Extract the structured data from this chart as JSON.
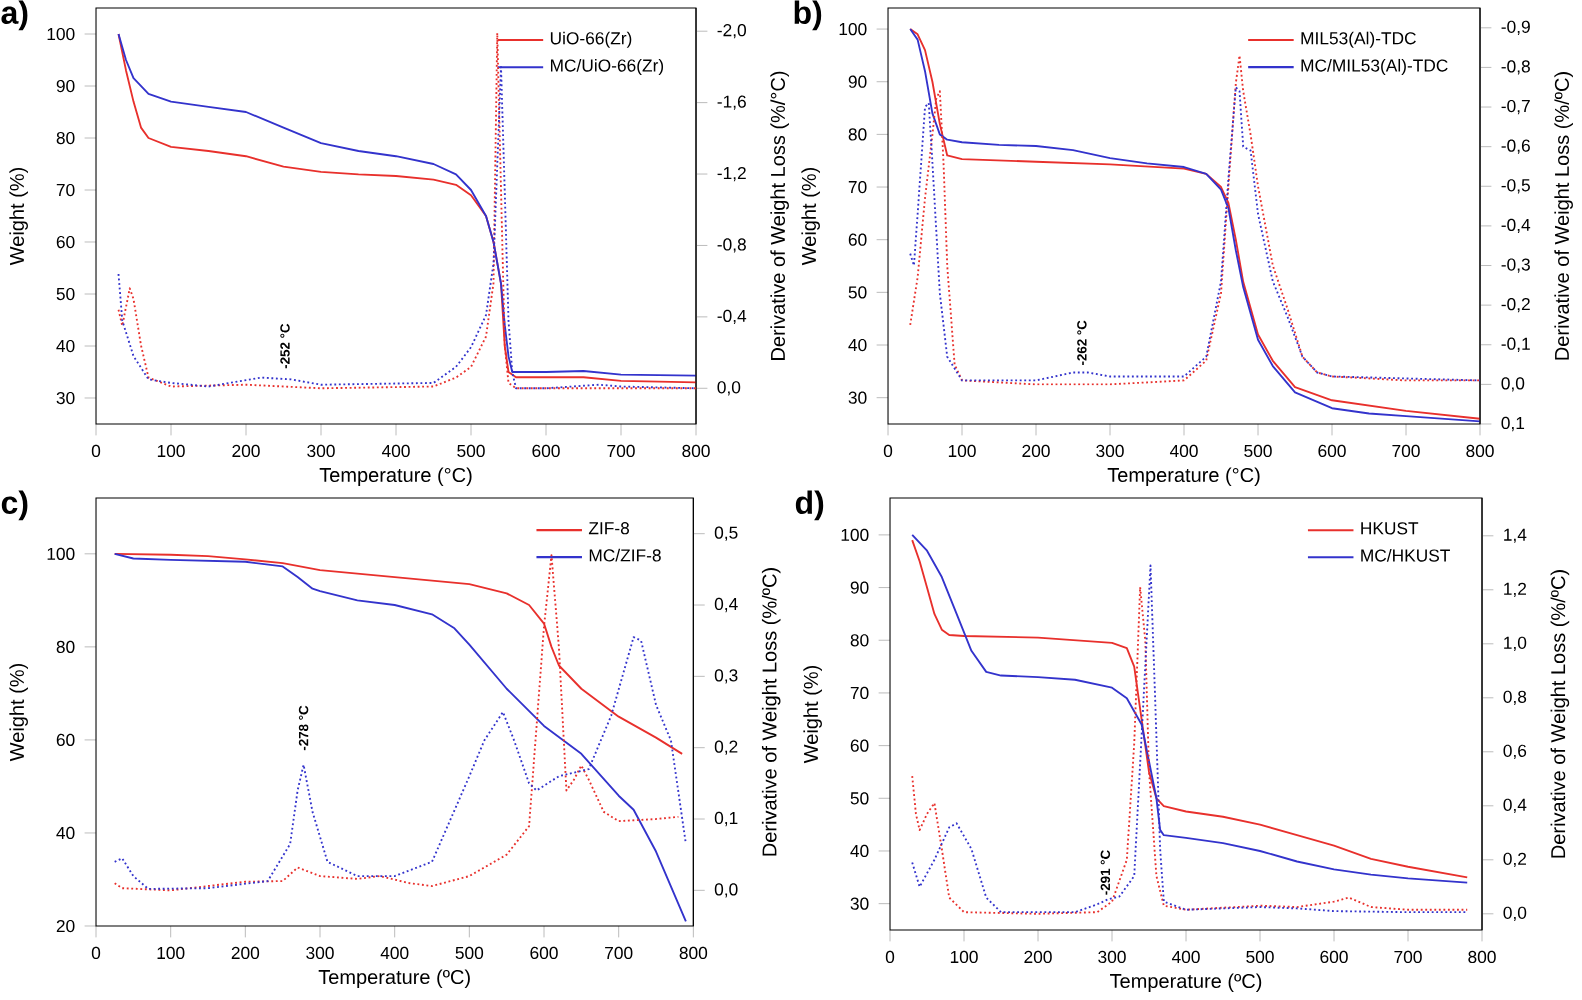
{
  "chart_data": [
    {
      "type": "line",
      "title": "a)",
      "xlabel": "Temperature (°C)",
      "ylabel": "Weight (%)",
      "y2label": "Derivative of Weight Loss (%/°C)",
      "xlim": [
        0,
        800
      ],
      "xticks": [
        0,
        100,
        200,
        300,
        400,
        500,
        600,
        700,
        800
      ],
      "ylim": [
        25,
        105
      ],
      "yticks": [
        30,
        40,
        50,
        60,
        70,
        80,
        90,
        100
      ],
      "y2lim": [
        0.2,
        -2.13
      ],
      "y2ticks": [
        {
          "value": -2.0,
          "label": "-2,0"
        },
        {
          "value": -1.6,
          "label": "-1,6"
        },
        {
          "value": -1.2,
          "label": "-1,2"
        },
        {
          "value": -0.8,
          "label": "-0,8"
        },
        {
          "value": -0.4,
          "label": "-0,4"
        },
        {
          "value": 0.0,
          "label": "0,0"
        }
      ],
      "legend": "top right",
      "marker": "none",
      "annotations": [
        {
          "text": "-252 °C",
          "x": 252,
          "y": 35
        }
      ],
      "series": [
        {
          "name": "UiO-66(Zr)",
          "color": "#e8302c",
          "line_style": "solid",
          "x": [
            30,
            40,
            50,
            60,
            70,
            100,
            150,
            200,
            250,
            300,
            350,
            400,
            450,
            480,
            500,
            520,
            530,
            540,
            545,
            550,
            560,
            600,
            650,
            700,
            800
          ],
          "values": [
            100,
            93,
            87,
            82,
            80,
            78.3,
            77.5,
            76.5,
            74.5,
            73.5,
            73,
            72.7,
            72,
            71,
            69,
            65,
            60,
            52,
            40,
            35,
            34,
            34,
            34,
            33.3,
            33
          ]
        },
        {
          "name": "MC/UiO-66(Zr)",
          "color": "#3333cc",
          "line_style": "solid",
          "x": [
            30,
            40,
            50,
            70,
            100,
            150,
            200,
            250,
            300,
            350,
            400,
            450,
            480,
            500,
            520,
            530,
            540,
            545,
            550,
            555,
            600,
            650,
            700,
            800
          ],
          "values": [
            100,
            95,
            91.5,
            88.5,
            87,
            86,
            85,
            82,
            79,
            77.5,
            76.5,
            75,
            73,
            70,
            65,
            60,
            52,
            44,
            38,
            35,
            35,
            35.2,
            34.5,
            34.3
          ]
        },
        {
          "color": "#e8302c",
          "line_style": "dotted",
          "axis": "y2",
          "x": [
            30,
            35,
            45,
            50,
            60,
            70,
            100,
            200,
            300,
            450,
            480,
            500,
            520,
            530,
            535,
            540,
            545,
            550,
            560,
            600,
            700,
            800
          ],
          "values": [
            -0.44,
            -0.35,
            -0.56,
            -0.5,
            -0.24,
            -0.06,
            -0.01,
            -0.02,
            0.0,
            -0.01,
            -0.06,
            -0.12,
            -0.29,
            -0.59,
            -1.99,
            -1.11,
            -0.24,
            -0.03,
            0.0,
            0.0,
            0.0,
            0.0
          ]
        },
        {
          "color": "#3333cc",
          "line_style": "dotted",
          "axis": "y2",
          "x": [
            30,
            35,
            50,
            70,
            100,
            150,
            220,
            260,
            300,
            450,
            480,
            500,
            520,
            530,
            540,
            545,
            550,
            555,
            560,
            600,
            670,
            700,
            800
          ],
          "values": [
            -0.64,
            -0.38,
            -0.18,
            -0.05,
            -0.03,
            -0.01,
            -0.06,
            -0.05,
            -0.02,
            -0.03,
            -0.12,
            -0.23,
            -0.41,
            -0.7,
            -1.8,
            -1.1,
            -0.38,
            -0.09,
            0.0,
            0.0,
            -0.02,
            -0.01,
            0.0
          ]
        }
      ]
    },
    {
      "type": "line",
      "title": "b)",
      "xlabel": "Temperature (°C)",
      "ylabel": "Weight (%)",
      "y2label": "Derivative of Weight Loss (%/ºC)",
      "xlim": [
        0,
        800
      ],
      "xticks": [
        0,
        100,
        200,
        300,
        400,
        500,
        600,
        700,
        800
      ],
      "ylim": [
        25,
        104
      ],
      "yticks": [
        30,
        40,
        50,
        60,
        70,
        80,
        90,
        100
      ],
      "y2lim": [
        0.1,
        -0.95
      ],
      "y2ticks": [
        {
          "value": -0.9,
          "label": "-0,9"
        },
        {
          "value": -0.8,
          "label": "-0,8"
        },
        {
          "value": -0.7,
          "label": "-0,7"
        },
        {
          "value": -0.6,
          "label": "-0,6"
        },
        {
          "value": -0.5,
          "label": "-0,5"
        },
        {
          "value": -0.4,
          "label": "-0,4"
        },
        {
          "value": -0.3,
          "label": "-0,3"
        },
        {
          "value": -0.2,
          "label": "-0,2"
        },
        {
          "value": -0.1,
          "label": "-0,1"
        },
        {
          "value": 0.0,
          "label": "0,0"
        },
        {
          "value": 0.1,
          "label": "0,1"
        }
      ],
      "legend": "top right",
      "marker": "none",
      "annotations": [
        {
          "text": "-262 °C",
          "x": 262,
          "y": 35.5
        }
      ],
      "series": [
        {
          "name": "MIL53(Al)-TDC",
          "color": "#e8302c",
          "line_style": "solid",
          "x": [
            30,
            40,
            50,
            60,
            70,
            80,
            100,
            200,
            300,
            400,
            430,
            450,
            460,
            470,
            480,
            500,
            520,
            550,
            600,
            650,
            700,
            800
          ],
          "values": [
            100,
            99,
            96,
            90,
            82,
            76,
            75.3,
            74.8,
            74.3,
            73.5,
            72.5,
            70,
            67,
            60,
            52,
            42,
            37,
            32,
            29.5,
            28.5,
            27.5,
            26
          ]
        },
        {
          "name": "MC/MIL53(Al)-TDC",
          "color": "#3333cc",
          "line_style": "solid",
          "x": [
            30,
            40,
            50,
            60,
            70,
            80,
            100,
            150,
            200,
            250,
            300,
            350,
            400,
            430,
            450,
            460,
            470,
            480,
            500,
            520,
            550,
            600,
            650,
            700,
            800
          ],
          "values": [
            100,
            98,
            92,
            84,
            80,
            79,
            78.5,
            78,
            77.8,
            77,
            75.5,
            74.5,
            73.8,
            72.5,
            69.5,
            66,
            58,
            51,
            41,
            36,
            31,
            28,
            27,
            26.5,
            25.5
          ]
        },
        {
          "color": "#e8302c",
          "line_style": "dotted",
          "axis": "y2",
          "x": [
            30,
            40,
            50,
            60,
            65,
            70,
            75,
            80,
            90,
            100,
            200,
            300,
            400,
            430,
            450,
            460,
            470,
            475,
            480,
            490,
            500,
            520,
            540,
            560,
            580,
            600,
            700,
            800
          ],
          "values": [
            -0.15,
            -0.27,
            -0.47,
            -0.63,
            -0.72,
            -0.74,
            -0.56,
            -0.3,
            -0.05,
            -0.01,
            0.0,
            0.0,
            -0.01,
            -0.06,
            -0.23,
            -0.5,
            -0.76,
            -0.83,
            -0.74,
            -0.63,
            -0.5,
            -0.3,
            -0.19,
            -0.07,
            -0.03,
            -0.02,
            -0.01,
            -0.01
          ]
        },
        {
          "color": "#3333cc",
          "line_style": "dotted",
          "axis": "y2",
          "x": [
            30,
            35,
            40,
            50,
            55,
            60,
            70,
            80,
            100,
            200,
            250,
            270,
            300,
            400,
            430,
            450,
            460,
            470,
            475,
            480,
            490,
            500,
            520,
            540,
            560,
            580,
            600,
            800
          ],
          "values": [
            -0.33,
            -0.3,
            -0.43,
            -0.7,
            -0.71,
            -0.56,
            -0.23,
            -0.07,
            -0.01,
            -0.01,
            -0.03,
            -0.03,
            -0.02,
            -0.02,
            -0.07,
            -0.26,
            -0.52,
            -0.75,
            -0.74,
            -0.6,
            -0.59,
            -0.43,
            -0.26,
            -0.17,
            -0.07,
            -0.03,
            -0.02,
            -0.01
          ]
        }
      ]
    },
    {
      "type": "line",
      "title": "c)",
      "xlabel": "Temperature (ºC)",
      "ylabel": "Weight (%)",
      "y2label": "Derivative of Weight Loss (%/ºC)",
      "xlim": [
        0,
        800
      ],
      "xticks": [
        0,
        100,
        200,
        300,
        400,
        500,
        600,
        700,
        800
      ],
      "ylim": [
        20,
        112
      ],
      "yticks": [
        20,
        40,
        60,
        80,
        100
      ],
      "y2lim": [
        -0.05,
        0.55
      ],
      "y2ticks": [
        {
          "value": 0.0,
          "label": "0,0"
        },
        {
          "value": 0.1,
          "label": "0,1"
        },
        {
          "value": 0.2,
          "label": "0,2"
        },
        {
          "value": 0.3,
          "label": "0,3"
        },
        {
          "value": 0.4,
          "label": "0,4"
        },
        {
          "value": 0.5,
          "label": "0,5"
        }
      ],
      "legend": "top right",
      "marker": "none",
      "annotations": [
        {
          "text": "-278 °C",
          "x": 278,
          "y": 57
        }
      ],
      "series": [
        {
          "name": "ZIF-8",
          "color": "#e8302c",
          "line_style": "solid",
          "x": [
            25,
            100,
            150,
            200,
            250,
            300,
            400,
            500,
            550,
            580,
            600,
            610,
            620,
            650,
            700,
            750,
            785
          ],
          "values": [
            100,
            99.8,
            99.5,
            98.8,
            98,
            96.5,
            95,
            93.5,
            91.5,
            89,
            85,
            80,
            76,
            71,
            65,
            60.5,
            57
          ]
        },
        {
          "name": "MC/ZIF-8",
          "color": "#3333cc",
          "line_style": "solid",
          "x": [
            25,
            50,
            100,
            200,
            250,
            270,
            290,
            300,
            350,
            400,
            450,
            480,
            500,
            550,
            600,
            650,
            700,
            720,
            750,
            790
          ],
          "values": [
            100,
            99,
            98.7,
            98.3,
            97.3,
            95,
            92.5,
            92,
            90,
            89,
            87,
            84,
            80.5,
            71,
            63,
            57,
            48,
            45,
            36,
            21
          ]
        },
        {
          "color": "#e8302c",
          "line_style": "dotted",
          "axis": "y2",
          "x": [
            25,
            35,
            100,
            200,
            250,
            270,
            300,
            350,
            380,
            420,
            450,
            500,
            550,
            580,
            600,
            610,
            620,
            630,
            640,
            650,
            660,
            680,
            700,
            750,
            780
          ],
          "values": [
            0.01,
            0.003,
            0.0,
            0.012,
            0.013,
            0.032,
            0.02,
            0.016,
            0.02,
            0.01,
            0.006,
            0.02,
            0.05,
            0.09,
            0.37,
            0.47,
            0.34,
            0.14,
            0.155,
            0.175,
            0.155,
            0.11,
            0.097,
            0.1,
            0.103
          ]
        },
        {
          "color": "#3333cc",
          "line_style": "dotted",
          "axis": "y2",
          "x": [
            25,
            35,
            50,
            70,
            150,
            230,
            260,
            270,
            278,
            290,
            310,
            350,
            400,
            450,
            500,
            520,
            545,
            560,
            580,
            590,
            620,
            660,
            690,
            720,
            730,
            750,
            770,
            790
          ],
          "values": [
            0.04,
            0.045,
            0.02,
            0.002,
            0.003,
            0.013,
            0.065,
            0.14,
            0.176,
            0.11,
            0.04,
            0.02,
            0.02,
            0.04,
            0.16,
            0.21,
            0.25,
            0.21,
            0.15,
            0.14,
            0.16,
            0.17,
            0.245,
            0.355,
            0.35,
            0.26,
            0.21,
            0.065
          ]
        }
      ]
    },
    {
      "type": "line",
      "title": "d)",
      "xlabel": "Temperature (ºC)",
      "ylabel": "Weight (%)",
      "y2label": "Derivative of Weight Loss (%/ºC)",
      "xlim": [
        0,
        800
      ],
      "xticks": [
        0,
        100,
        200,
        300,
        400,
        500,
        600,
        700,
        800
      ],
      "ylim": [
        25,
        107
      ],
      "yticks": [
        30,
        40,
        50,
        60,
        70,
        80,
        90,
        100
      ],
      "y2lim": [
        -0.06,
        1.54
      ],
      "y2ticks": [
        {
          "value": 0.0,
          "label": "0,0"
        },
        {
          "value": 0.2,
          "label": "0,2"
        },
        {
          "value": 0.4,
          "label": "0,4"
        },
        {
          "value": 0.6,
          "label": "0,6"
        },
        {
          "value": 0.8,
          "label": "0,8"
        },
        {
          "value": 1.0,
          "label": "1,0"
        },
        {
          "value": 1.2,
          "label": "1,2"
        },
        {
          "value": 1.4,
          "label": "1,4"
        }
      ],
      "legend": "top right",
      "marker": "none",
      "annotations": [
        {
          "text": "-291 °C",
          "x": 291,
          "y": 31
        }
      ],
      "series": [
        {
          "name": "HKUST",
          "color": "#e8302c",
          "line_style": "solid",
          "x": [
            30,
            40,
            50,
            60,
            70,
            80,
            100,
            200,
            300,
            320,
            330,
            340,
            350,
            360,
            370,
            400,
            450,
            500,
            550,
            600,
            650,
            700,
            780
          ],
          "values": [
            99,
            95,
            90,
            85,
            82,
            81,
            80.8,
            80.5,
            79.5,
            78.5,
            75,
            65,
            55,
            50,
            48.5,
            47.5,
            46.5,
            45,
            43,
            41,
            38.5,
            37,
            35
          ]
        },
        {
          "name": "MC/HKUST",
          "color": "#3333cc",
          "line_style": "solid",
          "x": [
            30,
            50,
            70,
            90,
            110,
            130,
            150,
            200,
            250,
            300,
            320,
            340,
            350,
            360,
            365,
            370,
            400,
            450,
            500,
            550,
            600,
            650,
            700,
            780
          ],
          "values": [
            100,
            97,
            92,
            85,
            78,
            74,
            73.3,
            73,
            72.5,
            71,
            69,
            64,
            57,
            50,
            44,
            43,
            42.5,
            41.5,
            40,
            38,
            36.5,
            35.5,
            34.8,
            34
          ]
        },
        {
          "color": "#e8302c",
          "line_style": "dotted",
          "axis": "y2",
          "x": [
            30,
            35,
            40,
            50,
            60,
            70,
            80,
            100,
            200,
            280,
            300,
            320,
            330,
            338,
            345,
            350,
            360,
            370,
            400,
            500,
            550,
            600,
            620,
            650,
            700,
            780
          ],
          "values": [
            0.51,
            0.37,
            0.31,
            0.37,
            0.41,
            0.24,
            0.06,
            0.006,
            0.0,
            0.006,
            0.045,
            0.2,
            0.63,
            1.21,
            1.01,
            0.53,
            0.14,
            0.03,
            0.015,
            0.03,
            0.025,
            0.045,
            0.06,
            0.025,
            0.015,
            0.015
          ]
        },
        {
          "color": "#3333cc",
          "line_style": "dotted",
          "axis": "y2",
          "x": [
            30,
            40,
            60,
            80,
            90,
            110,
            130,
            150,
            250,
            280,
            295,
            310,
            330,
            345,
            352,
            358,
            365,
            370,
            400,
            500,
            550,
            600,
            700,
            780
          ],
          "values": [
            0.19,
            0.1,
            0.2,
            0.32,
            0.335,
            0.24,
            0.06,
            0.006,
            0.006,
            0.035,
            0.054,
            0.064,
            0.14,
            0.92,
            1.29,
            0.82,
            0.24,
            0.045,
            0.015,
            0.025,
            0.02,
            0.01,
            0.006,
            0.006
          ]
        }
      ]
    }
  ]
}
